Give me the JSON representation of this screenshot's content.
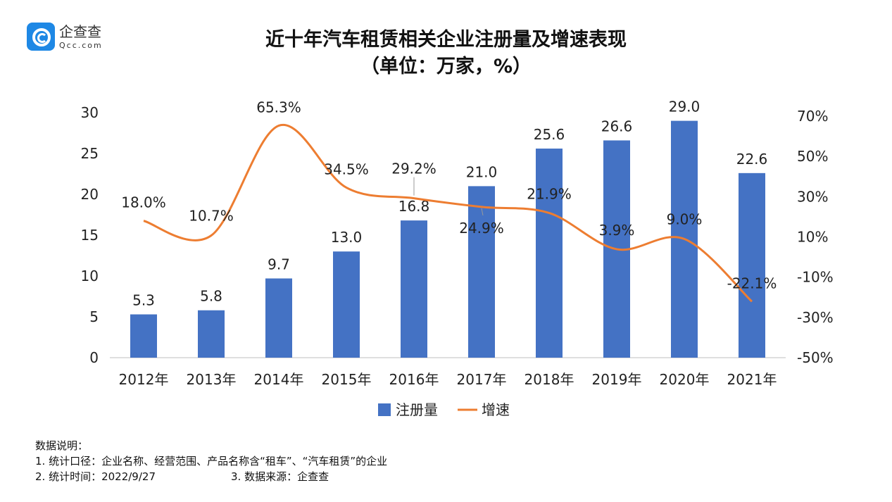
{
  "logo": {
    "cn": "企查查",
    "en": "Qcc.com"
  },
  "title_line1": "近十年汽车租赁相关企业注册量及增速表现",
  "title_line2": "（单位：万家，%）",
  "chart_data": {
    "type": "bar+line",
    "title": "近十年汽车租赁相关企业注册量及增速表现（单位：万家，%）",
    "categories": [
      "2012年",
      "2013年",
      "2014年",
      "2015年",
      "2016年",
      "2017年",
      "2018年",
      "2019年",
      "2020年",
      "2021年"
    ],
    "series": [
      {
        "name": "注册量",
        "type": "bar",
        "axis": "left",
        "color": "#4472C4",
        "values": [
          5.3,
          5.8,
          9.7,
          13.0,
          16.8,
          21.0,
          25.6,
          26.6,
          29.0,
          22.6
        ],
        "labels": [
          "5.3",
          "5.8",
          "9.7",
          "13.0",
          "16.8",
          "21.0",
          "25.6",
          "26.6",
          "29.0",
          "22.6"
        ]
      },
      {
        "name": "增速",
        "type": "line",
        "axis": "right",
        "color": "#ED7D31",
        "smooth": true,
        "values": [
          18.0,
          10.7,
          65.3,
          34.5,
          29.2,
          24.9,
          21.9,
          3.9,
          9.0,
          -22.1
        ],
        "labels": [
          "18.0%",
          "10.7%",
          "65.3%",
          "34.5%",
          "29.2%",
          "24.9%",
          "21.9%",
          "3.9%",
          "9.0%",
          "-22.1%"
        ]
      }
    ],
    "left_axis": {
      "ylim": [
        0,
        30
      ],
      "ticks": [
        "0",
        "5",
        "10",
        "15",
        "20",
        "25",
        "30"
      ]
    },
    "right_axis": {
      "ylim": [
        -50,
        70
      ],
      "ticks": [
        "-50%",
        "-30%",
        "-10%",
        "10%",
        "30%",
        "50%",
        "70%"
      ]
    },
    "grid": false,
    "legend": "bottom"
  },
  "notes": {
    "heading": "数据说明：",
    "line1": "1. 统计口径：企业名称、经营范围、产品名称含“租车”、“汽车租赁”的企业",
    "line2a": "2. 统计时间：2022/9/27",
    "line2b": "3. 数据来源：企查查"
  }
}
